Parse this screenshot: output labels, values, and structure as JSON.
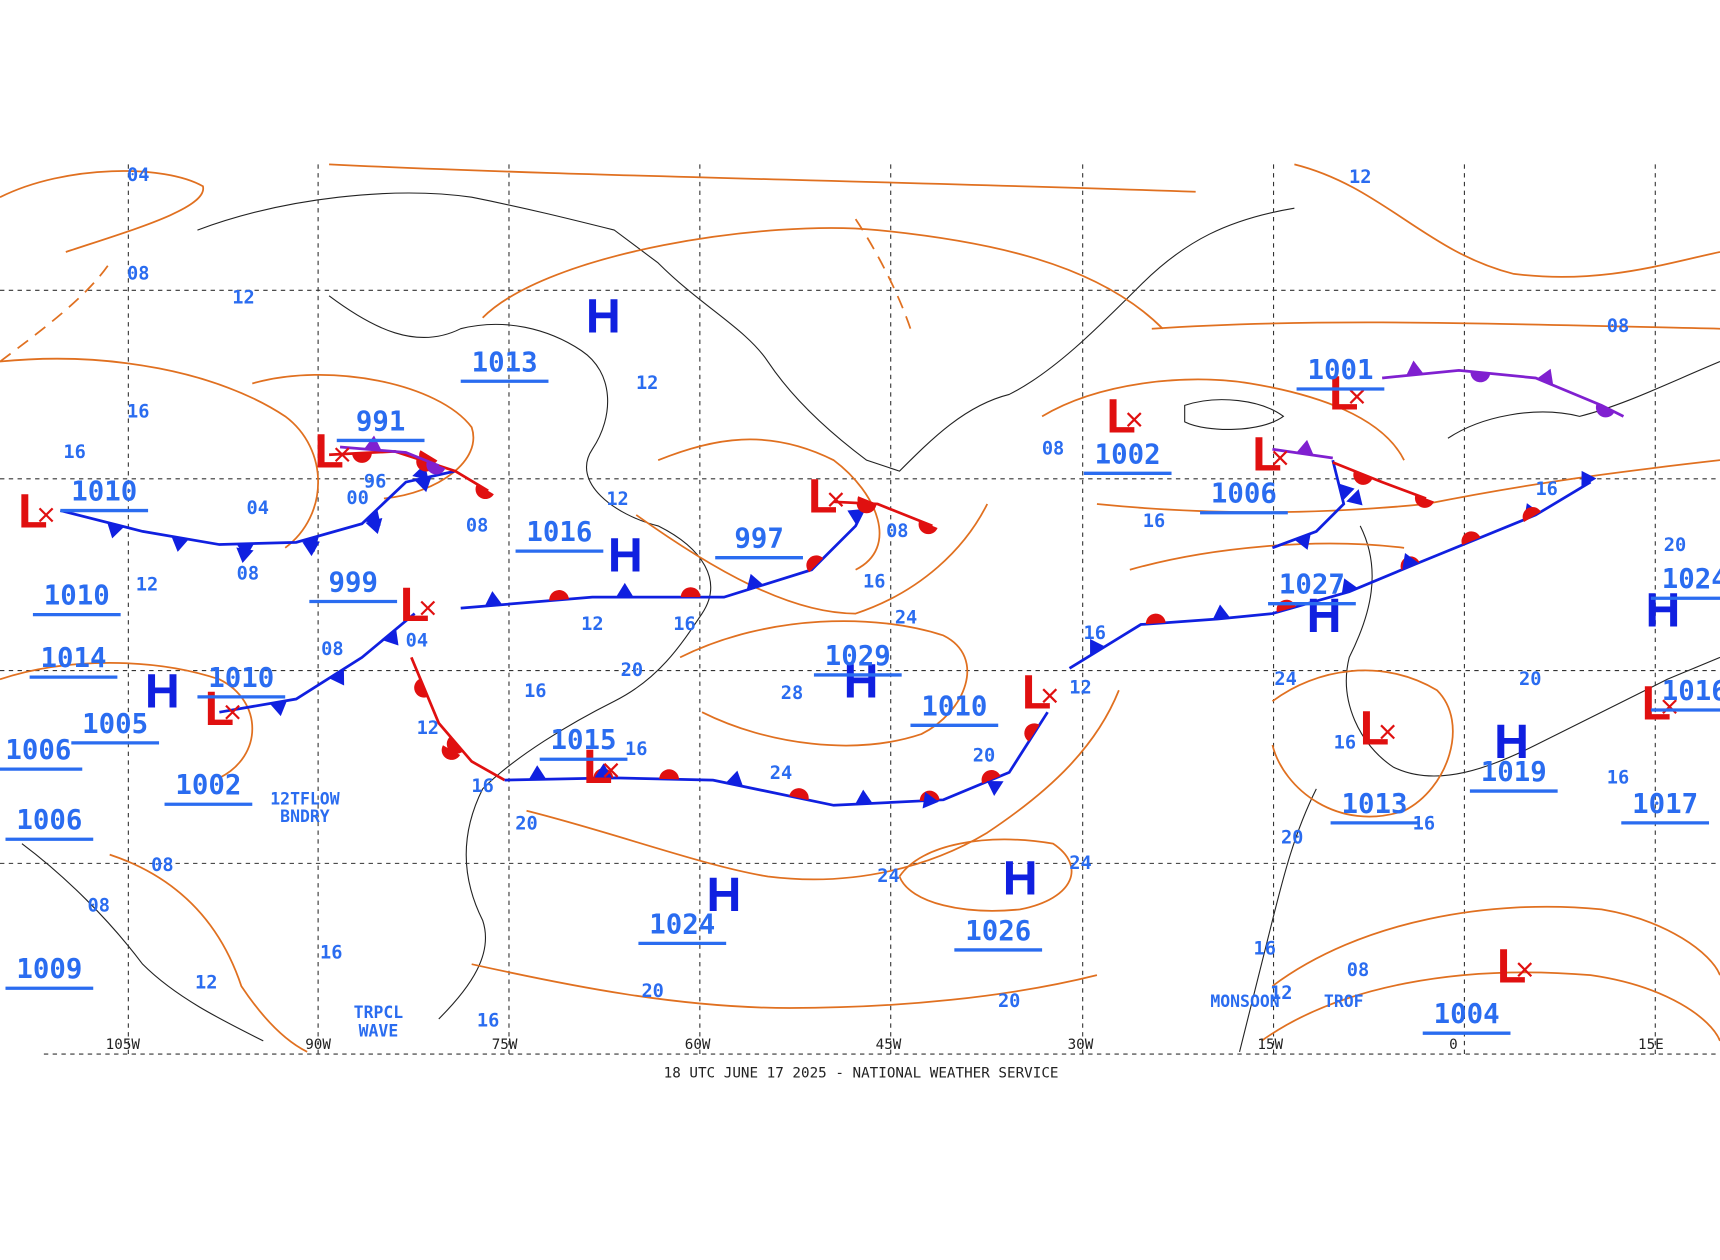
{
  "footer": "18 UTC JUNE 17 2025 - NATIONAL WEATHER SERVICE",
  "longitude_labels": [
    "105W",
    "90W",
    "75W",
    "60W",
    "45W",
    "30W",
    "15W",
    "0",
    "15E"
  ],
  "pressure_centers": [
    {
      "symbol": "H",
      "pressure": 1013
    },
    {
      "symbol": "L",
      "pressure": 991
    },
    {
      "symbol": "L",
      "pressure": 999
    },
    {
      "symbol": "H",
      "pressure": 1016
    },
    {
      "symbol": "L",
      "pressure": 997
    },
    {
      "symbol": "L",
      "pressure": 1002
    },
    {
      "symbol": "L",
      "pressure": 1006
    },
    {
      "symbol": "L",
      "pressure": 1001
    },
    {
      "symbol": "H",
      "pressure": 1027
    },
    {
      "symbol": "H",
      "pressure": 1029
    },
    {
      "symbol": "L",
      "pressure": 1010
    },
    {
      "symbol": "L",
      "pressure": 1015
    },
    {
      "symbol": "H",
      "pressure": 1024
    },
    {
      "symbol": "H",
      "pressure": 1026
    },
    {
      "symbol": "L",
      "pressure": 1013
    },
    {
      "symbol": "H",
      "pressure": 1019
    },
    {
      "symbol": "H",
      "pressure": 1024
    },
    {
      "symbol": "L",
      "pressure": 1016
    },
    {
      "symbol": "L",
      "pressure": 1004
    },
    {
      "symbol": "L",
      "pressure": 1010
    },
    {
      "symbol": "L",
      "pressure": 1010
    },
    {
      "symbol": "H",
      "pressure": 1005
    }
  ],
  "pressure_labels": [
    1010,
    1014,
    1006,
    1002,
    1006,
    1009,
    1017
  ],
  "isobar_labels": [
    "04",
    "12",
    "08",
    "12",
    "16",
    "16",
    "04",
    "08",
    "12",
    "12",
    "08",
    "12",
    "08",
    "04",
    "12",
    "16",
    "20",
    "16",
    "16",
    "12",
    "16",
    "20",
    "08",
    "08",
    "12",
    "16",
    "16",
    "20",
    "24",
    "28",
    "24",
    "16",
    "08",
    "08",
    "16",
    "16",
    "12",
    "20",
    "24",
    "24",
    "20",
    "24",
    "20",
    "16",
    "08",
    "12",
    "16",
    "16",
    "20",
    "16",
    "20",
    "08",
    "16",
    "96",
    "00"
  ],
  "feature_labels": [
    "12TFLOW",
    "BNDRY",
    "TRPCL",
    "WAVE",
    "MONSOON",
    "TROF"
  ]
}
